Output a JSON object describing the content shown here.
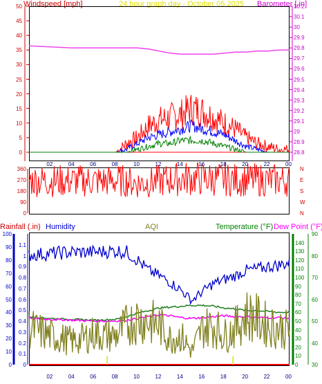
{
  "header": {
    "windspeed_label": "Windspeed [mph]",
    "date_label": "24 hour graph day - October 05 2025",
    "barometer_label": "Barometer [.in]"
  },
  "lower_header": {
    "rainfall_label": "Rainfall (.in)",
    "humidity_label": "Humidity",
    "aqi_label": "AQI",
    "temperature_label": "Temperature (°F)",
    "dewpoint_label": "Dew Point (°F)"
  },
  "colors": {
    "windspeed": "#ff0000",
    "gust": "#ff0000",
    "wind_avg": "#0000ff",
    "wind_min": "#008000",
    "barometer": "#ee44ee",
    "direction": "#ff0000",
    "rainfall": "#ff0000",
    "humidity": "#0000cc",
    "aqi": "#808020",
    "temperature": "#208020",
    "dewpoint": "#ff00ff",
    "axis_left_top": "#cc0000",
    "axis_right_top": "#cc00cc",
    "axis_dir": "#cc0000",
    "axis_rain": "#0000cc",
    "axis_humidity": "#0000cc",
    "axis_temp": "#008000",
    "axis_dew": "#008000",
    "header_yellow": "#e0e000"
  },
  "chart_data": [
    {
      "type": "line",
      "name": "wind_barometer",
      "x_tick_labels": [
        "02",
        "04",
        "06",
        "08",
        "10",
        "12",
        "14",
        "16",
        "18",
        "20",
        "22",
        "00"
      ],
      "x_range_hours": [
        0,
        24
      ],
      "left_axis": {
        "label": "Windspeed [mph]",
        "ylim": [
          0,
          50
        ],
        "ticks": [
          "0",
          "5",
          "10",
          "15",
          "20",
          "25",
          "30",
          "35",
          "40",
          "45",
          "50"
        ]
      },
      "right_axis": {
        "label": "Barometer [.in]",
        "ylim": [
          28.8,
          30.2
        ],
        "ticks": [
          "28.8",
          "28.9",
          "29",
          "29.1",
          "29.2",
          "29.3",
          "29.4",
          "29.5",
          "29.6",
          "29.7",
          "29.8",
          "29.9",
          "30",
          "30.1",
          "30.2"
        ]
      },
      "series": [
        {
          "key": "barometer",
          "x": [
            0,
            2,
            4,
            6,
            8,
            9,
            10,
            11,
            12,
            13,
            14,
            15,
            16,
            17,
            18,
            19,
            20,
            21,
            22,
            23,
            24
          ],
          "values": [
            29.82,
            29.81,
            29.8,
            29.8,
            29.8,
            29.8,
            29.8,
            29.79,
            29.77,
            29.75,
            29.74,
            29.74,
            29.74,
            29.74,
            29.75,
            29.76,
            29.76,
            29.77,
            29.77,
            29.78,
            29.78
          ]
        },
        {
          "key": "gust",
          "x": [
            0,
            1,
            2,
            3,
            4,
            5,
            6,
            7,
            8,
            9,
            10,
            11,
            12,
            13,
            14,
            15,
            16,
            17,
            18,
            19,
            20,
            21,
            22,
            23,
            24
          ],
          "values": [
            0,
            0,
            0,
            0,
            0,
            0,
            0,
            0,
            0,
            3,
            5,
            9,
            11,
            12,
            13,
            15,
            14,
            12,
            10,
            8,
            5,
            3,
            2,
            1,
            1
          ]
        },
        {
          "key": "wind_avg",
          "x": [
            0,
            1,
            2,
            3,
            4,
            5,
            6,
            7,
            8,
            9,
            10,
            11,
            12,
            13,
            14,
            15,
            16,
            17,
            18,
            19,
            20,
            21,
            22,
            23,
            24
          ],
          "values": [
            0,
            0,
            0,
            0,
            0,
            0,
            0,
            0,
            0,
            1,
            3,
            5,
            6,
            7,
            8,
            9,
            8,
            7,
            6,
            4,
            2,
            1,
            0,
            0,
            0
          ]
        },
        {
          "key": "wind_min",
          "x": [
            0,
            1,
            2,
            3,
            4,
            5,
            6,
            7,
            8,
            9,
            10,
            11,
            12,
            13,
            14,
            15,
            16,
            17,
            18,
            19,
            20,
            21,
            22,
            23,
            24
          ],
          "values": [
            0,
            0,
            0,
            0,
            0,
            0,
            0,
            0,
            0,
            0,
            1,
            2,
            3,
            3,
            4,
            4,
            4,
            3,
            2,
            1,
            0,
            0,
            0,
            0,
            0
          ]
        }
      ]
    },
    {
      "type": "line",
      "name": "wind_direction",
      "x_tick_labels": [
        "02",
        "04",
        "06",
        "08",
        "10",
        "12",
        "14",
        "16",
        "18",
        "20",
        "22",
        "00"
      ],
      "left_axis": {
        "ylim": [
          0,
          360
        ],
        "ticks": [
          "0",
          "90",
          "180",
          "270",
          "360"
        ]
      },
      "right_axis": {
        "ticks": [
          "N",
          "W",
          "S",
          "E",
          "N"
        ]
      },
      "series": [
        {
          "key": "direction",
          "x": [
            0,
            2,
            4,
            6,
            8,
            9,
            10,
            11,
            12,
            13,
            14,
            15,
            16,
            17,
            18,
            19,
            20,
            22,
            24
          ],
          "values": [
            266,
            262,
            262,
            262,
            262,
            262,
            240,
            250,
            262,
            270,
            280,
            282,
            282,
            278,
            275,
            270,
            270,
            268,
            266
          ]
        }
      ]
    },
    {
      "type": "line",
      "name": "rain_humidity_aqi_temp",
      "x_tick_labels": [
        "02",
        "04",
        "06",
        "08",
        "10",
        "12",
        "14",
        "16",
        "18",
        "20",
        "22",
        "00"
      ],
      "rain_axis": {
        "ylim": [
          0,
          1.2
        ],
        "ticks": [
          "0",
          "0.1",
          "0.2",
          "0.3",
          "0.4",
          "0.5",
          "0.6",
          "0.7",
          "0.8",
          "0.9",
          "1",
          "1.1"
        ]
      },
      "humidity_axis": {
        "ylim": [
          0,
          100
        ],
        "ticks": [
          "0",
          "10",
          "20",
          "30",
          "40",
          "50",
          "60",
          "70",
          "80",
          "90",
          "100"
        ]
      },
      "temperature_axis": {
        "ylim": [
          0,
          150
        ],
        "ticks": [
          "0",
          "10",
          "20",
          "30",
          "40",
          "50",
          "60",
          "70",
          "80",
          "90",
          "100",
          "110",
          "120",
          "130",
          "140"
        ]
      },
      "dewpoint_axis": {
        "ylim": [
          30,
          90
        ],
        "ticks": [
          "30",
          "40",
          "50",
          "60",
          "70",
          "80",
          "90"
        ]
      },
      "series": [
        {
          "key": "humidity",
          "x": [
            0,
            2,
            4,
            6,
            8,
            9,
            10,
            11,
            12,
            13,
            14,
            15,
            16,
            17,
            18,
            19,
            20,
            21,
            22,
            23,
            24
          ],
          "values": [
            84,
            85,
            86,
            86,
            87,
            86,
            80,
            72,
            68,
            63,
            57,
            49,
            56,
            62,
            65,
            68,
            72,
            73,
            75,
            76,
            78
          ]
        },
        {
          "key": "temperature",
          "x": [
            0,
            2,
            4,
            6,
            8,
            9,
            10,
            11,
            12,
            13,
            14,
            15,
            16,
            17,
            18,
            19,
            20,
            21,
            22,
            23,
            24
          ],
          "values": [
            55,
            53,
            52,
            51,
            52,
            55,
            59,
            62,
            65,
            66,
            67,
            68,
            68,
            67,
            65,
            64,
            62,
            62,
            61,
            60,
            60
          ]
        },
        {
          "key": "dewpoint",
          "x": [
            0,
            2,
            4,
            6,
            8,
            9,
            10,
            11,
            12,
            13,
            14,
            15,
            16,
            17,
            18,
            19,
            20,
            21,
            22,
            23,
            24
          ],
          "values": [
            53,
            52,
            51,
            50,
            50,
            51,
            53,
            55,
            57,
            56,
            54,
            53,
            54,
            55,
            56,
            55,
            55,
            54,
            54,
            54,
            53
          ]
        },
        {
          "key": "aqi",
          "x": [
            0,
            1,
            2,
            3,
            4,
            5,
            6,
            7,
            8,
            9,
            10,
            11,
            12,
            13,
            14,
            15,
            16,
            17,
            18,
            19,
            20,
            21,
            22,
            23,
            24
          ],
          "values": [
            28,
            25,
            22,
            20,
            18,
            20,
            24,
            22,
            22,
            30,
            35,
            33,
            30,
            20,
            22,
            10,
            28,
            30,
            22,
            28,
            38,
            35,
            30,
            28,
            26
          ]
        }
      ]
    }
  ]
}
